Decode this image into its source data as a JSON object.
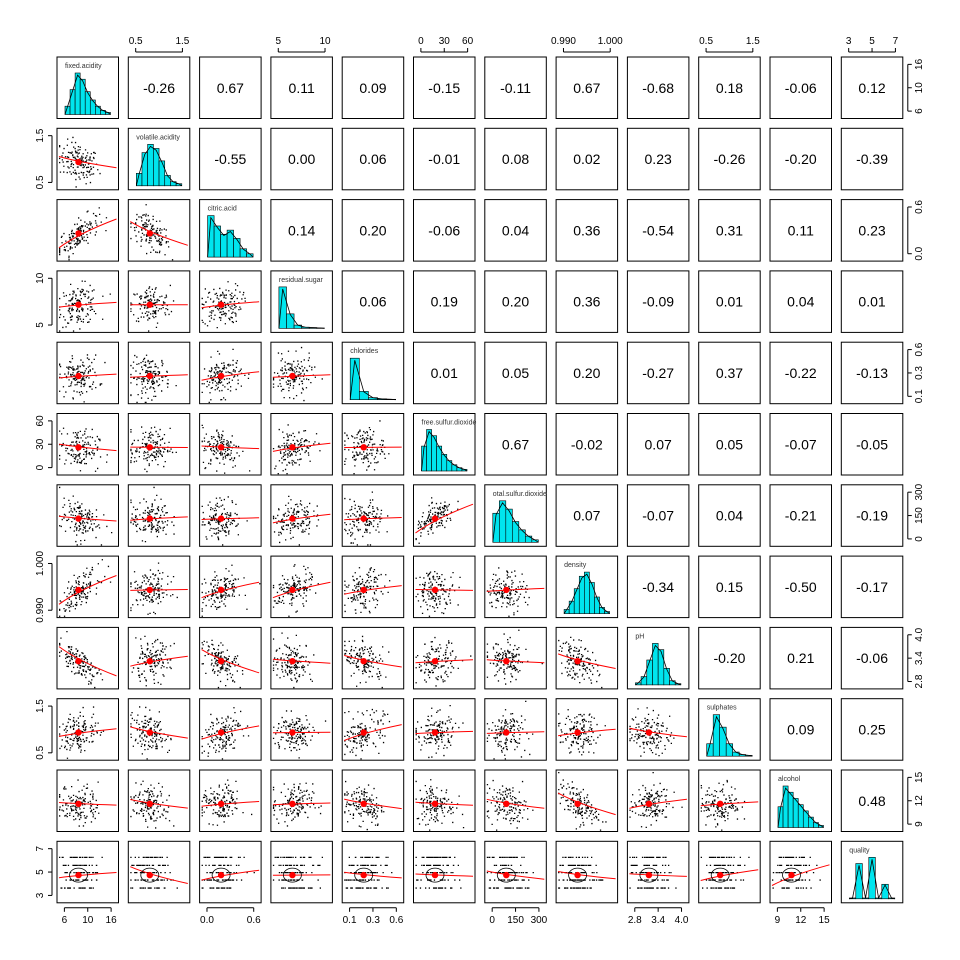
{
  "chart_data": {
    "type": "scatter-matrix",
    "variables": [
      "fixed.acidity",
      "volatile.acidity",
      "citric.acid",
      "residual.sugar",
      "chlorides",
      "free.sulfur.dioxide",
      "total.sulfur.dioxide",
      "density",
      "pH",
      "sulphates",
      "alcohol",
      "quality"
    ],
    "panel_label_shown": [
      "fixed.acidity",
      "volatile.acidity",
      "citric.acid",
      "residual.sugar",
      "chlorides",
      "free.sulfur.dioxide",
      "otal.sulfur.dioxide",
      "density",
      "pH",
      "sulphates",
      "alcohol",
      "quality"
    ],
    "ranges": [
      [
        4.6,
        15.9
      ],
      [
        0.12,
        1.58
      ],
      [
        0,
        1
      ],
      [
        0.9,
        15.5
      ],
      [
        0.012,
        0.611
      ],
      [
        1,
        72
      ],
      [
        6,
        289
      ],
      [
        0.99,
        1.0037
      ],
      [
        2.74,
        4.01
      ],
      [
        0.33,
        2.0
      ],
      [
        8.4,
        14.9
      ],
      [
        3,
        8
      ]
    ],
    "ticks": [
      [
        "6",
        "10",
        "16"
      ],
      [
        "0.5",
        "1.5"
      ],
      [
        "0.0",
        "0.6"
      ],
      [
        "5",
        "10"
      ],
      [
        "0.1",
        "0.3",
        "0.6"
      ],
      [
        "0",
        "30",
        "60"
      ],
      [
        "0",
        "150",
        "300"
      ],
      [
        "0.990",
        "1.000"
      ],
      [
        "2.8",
        "3.4",
        "4.0"
      ],
      [
        "0.5",
        "1.5"
      ],
      [
        "9",
        "12",
        "15"
      ],
      [
        "3",
        "5",
        "7"
      ]
    ],
    "correlations": [
      {
        "row": 0,
        "col": 1,
        "value": "-0.26"
      },
      {
        "row": 0,
        "col": 2,
        "value": "0.67"
      },
      {
        "row": 0,
        "col": 3,
        "value": "0.11"
      },
      {
        "row": 0,
        "col": 4,
        "value": "0.09"
      },
      {
        "row": 0,
        "col": 5,
        "value": "-0.15"
      },
      {
        "row": 0,
        "col": 6,
        "value": "-0.11"
      },
      {
        "row": 0,
        "col": 7,
        "value": "0.67"
      },
      {
        "row": 0,
        "col": 8,
        "value": "-0.68"
      },
      {
        "row": 0,
        "col": 9,
        "value": "0.18"
      },
      {
        "row": 0,
        "col": 10,
        "value": "-0.06"
      },
      {
        "row": 0,
        "col": 11,
        "value": "0.12"
      },
      {
        "row": 1,
        "col": 2,
        "value": "-0.55"
      },
      {
        "row": 1,
        "col": 3,
        "value": "0.00"
      },
      {
        "row": 1,
        "col": 4,
        "value": "0.06"
      },
      {
        "row": 1,
        "col": 5,
        "value": "-0.01"
      },
      {
        "row": 1,
        "col": 6,
        "value": "0.08"
      },
      {
        "row": 1,
        "col": 7,
        "value": "0.02"
      },
      {
        "row": 1,
        "col": 8,
        "value": "0.23"
      },
      {
        "row": 1,
        "col": 9,
        "value": "-0.26"
      },
      {
        "row": 1,
        "col": 10,
        "value": "-0.20"
      },
      {
        "row": 1,
        "col": 11,
        "value": "-0.39"
      },
      {
        "row": 2,
        "col": 3,
        "value": "0.14"
      },
      {
        "row": 2,
        "col": 4,
        "value": "0.20"
      },
      {
        "row": 2,
        "col": 5,
        "value": "-0.06"
      },
      {
        "row": 2,
        "col": 6,
        "value": "0.04"
      },
      {
        "row": 2,
        "col": 7,
        "value": "0.36"
      },
      {
        "row": 2,
        "col": 8,
        "value": "-0.54"
      },
      {
        "row": 2,
        "col": 9,
        "value": "0.31"
      },
      {
        "row": 2,
        "col": 10,
        "value": "0.11"
      },
      {
        "row": 2,
        "col": 11,
        "value": "0.23"
      },
      {
        "row": 3,
        "col": 4,
        "value": "0.06"
      },
      {
        "row": 3,
        "col": 5,
        "value": "0.19"
      },
      {
        "row": 3,
        "col": 6,
        "value": "0.20"
      },
      {
        "row": 3,
        "col": 7,
        "value": "0.36"
      },
      {
        "row": 3,
        "col": 8,
        "value": "-0.09"
      },
      {
        "row": 3,
        "col": 9,
        "value": "0.01"
      },
      {
        "row": 3,
        "col": 10,
        "value": "0.04"
      },
      {
        "row": 3,
        "col": 11,
        "value": "0.01"
      },
      {
        "row": 4,
        "col": 5,
        "value": "0.01"
      },
      {
        "row": 4,
        "col": 6,
        "value": "0.05"
      },
      {
        "row": 4,
        "col": 7,
        "value": "0.20"
      },
      {
        "row": 4,
        "col": 8,
        "value": "-0.27"
      },
      {
        "row": 4,
        "col": 9,
        "value": "0.37"
      },
      {
        "row": 4,
        "col": 10,
        "value": "-0.22"
      },
      {
        "row": 4,
        "col": 11,
        "value": "-0.13"
      },
      {
        "row": 5,
        "col": 6,
        "value": "0.67"
      },
      {
        "row": 5,
        "col": 7,
        "value": "-0.02"
      },
      {
        "row": 5,
        "col": 8,
        "value": "0.07"
      },
      {
        "row": 5,
        "col": 9,
        "value": "0.05"
      },
      {
        "row": 5,
        "col": 10,
        "value": "-0.07"
      },
      {
        "row": 5,
        "col": 11,
        "value": "-0.05"
      },
      {
        "row": 6,
        "col": 7,
        "value": "0.07"
      },
      {
        "row": 6,
        "col": 8,
        "value": "-0.07"
      },
      {
        "row": 6,
        "col": 9,
        "value": "0.04"
      },
      {
        "row": 6,
        "col": 10,
        "value": "-0.21"
      },
      {
        "row": 6,
        "col": 11,
        "value": "-0.19"
      },
      {
        "row": 7,
        "col": 8,
        "value": "-0.34"
      },
      {
        "row": 7,
        "col": 9,
        "value": "0.15"
      },
      {
        "row": 7,
        "col": 10,
        "value": "-0.50"
      },
      {
        "row": 7,
        "col": 11,
        "value": "-0.17"
      },
      {
        "row": 8,
        "col": 9,
        "value": "-0.20"
      },
      {
        "row": 8,
        "col": 10,
        "value": "0.21"
      },
      {
        "row": 8,
        "col": 11,
        "value": "-0.06"
      },
      {
        "row": 9,
        "col": 10,
        "value": "0.09"
      },
      {
        "row": 9,
        "col": 11,
        "value": "0.25"
      },
      {
        "row": 10,
        "col": 11,
        "value": "0.48"
      }
    ],
    "colors": {
      "histogram": "#00e5ee",
      "points": "#000000",
      "smooth": "#ff0000",
      "centroid": "#ff0000"
    },
    "grid": false,
    "legend": "none"
  }
}
